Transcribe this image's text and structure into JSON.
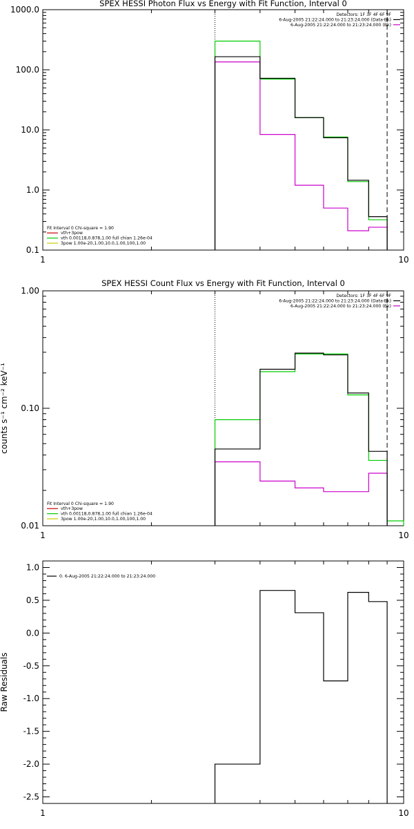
{
  "chart_data": [
    {
      "type": "line",
      "title": "SPEX HESSI Photon Flux vs Energy with Fit Function, Interval 0",
      "xscale": "log",
      "yscale": "log",
      "xlim": [
        1,
        10
      ],
      "ylim": [
        0.1,
        1000
      ],
      "xticks": [
        1,
        10
      ],
      "xticklabels": [
        "1",
        "10"
      ],
      "yticks": [
        0.1,
        1,
        10,
        100,
        1000
      ],
      "yticklabels": [
        "0.1",
        "1.0",
        "10.0",
        "100.0",
        "1000.0"
      ],
      "grid": false,
      "ref_lines": [
        {
          "x": 3,
          "style": "dotted",
          "color": "#000000"
        },
        {
          "x": 9,
          "style": "dashed",
          "color": "#000000"
        }
      ],
      "legend_top_right": {
        "lines": [
          {
            "text": "Detectors: 1F 3F 4F 6F 9F",
            "color": ""
          },
          {
            "text": "6-Aug-2005 21:22:24.000 to 21:23:24.000 (Data-Bk)",
            "color": "#000000"
          },
          {
            "text": "6-Aug-2005 21:22:24.000 to 21:23:24.000 (Bk)",
            "color": "#cc00cc"
          }
        ]
      },
      "legend_bottom_left": {
        "lines": [
          {
            "text": "Fit Interval 0   Chi-square = 1.90",
            "color": ""
          },
          {
            "text": "vth+3pow",
            "color": "#cc0000"
          },
          {
            "text": "vth 0.00118,0.878,1.00  full chian 1.26e-04",
            "color": "#00cc00"
          },
          {
            "text": "3pow 1.00e-20,1.00,10.0,1.00,100,1.00",
            "color": "#cccc00"
          }
        ]
      },
      "series": [
        {
          "role": "data_minus_bk",
          "color": "#000000",
          "edges": [
            3,
            4,
            5,
            6,
            7,
            8,
            9
          ],
          "values": [
            165,
            72,
            16,
            7.4,
            1.45,
            0.36
          ]
        },
        {
          "role": "bk",
          "color": "#cc00cc",
          "edges": [
            3,
            4,
            5,
            6,
            7,
            8,
            9
          ],
          "values": [
            135,
            8.4,
            1.2,
            0.5,
            0.21,
            0.24
          ]
        },
        {
          "role": "fit",
          "color": "#00cc00",
          "edges": [
            3,
            4,
            5,
            6,
            7,
            8,
            9
          ],
          "values": [
            300,
            70,
            16,
            7.6,
            1.38,
            0.32
          ]
        }
      ]
    },
    {
      "type": "line",
      "title": "SPEX HESSI Count Flux vs Energy with Fit Function, Interval 0",
      "ylabel": "counts s⁻¹ cm⁻² keV⁻¹",
      "xscale": "log",
      "yscale": "log",
      "xlim": [
        1,
        10
      ],
      "ylim": [
        0.01,
        1
      ],
      "xticks": [
        1,
        10
      ],
      "xticklabels": [
        "1",
        "10"
      ],
      "yticks": [
        0.01,
        0.1,
        1
      ],
      "yticklabels": [
        "0.01",
        "0.10",
        "1.00"
      ],
      "grid": false,
      "ref_lines": [
        {
          "x": 3,
          "style": "dotted",
          "color": "#000000"
        },
        {
          "x": 9,
          "style": "dashed",
          "color": "#000000"
        }
      ],
      "legend_top_right": {
        "lines": [
          {
            "text": "Detectors: 1F 3F 4F 6F 9F",
            "color": ""
          },
          {
            "text": "6-Aug-2005 21:22:24.000 to 21:23:24.000 (Data-Bk)",
            "color": "#000000"
          },
          {
            "text": "6-Aug-2005 21:22:24.000 to 21:23:24.000 (Bk)",
            "color": "#cc00cc"
          }
        ]
      },
      "legend_bottom_left": {
        "lines": [
          {
            "text": "Fit Interval 0   Chi-square = 1.90",
            "color": ""
          },
          {
            "text": "vth+3pow",
            "color": "#cc0000"
          },
          {
            "text": "vth 0.00118,0.878,1.00  full chian 1.26e-04",
            "color": "#00cc00"
          },
          {
            "text": "3pow 1.00e-20,1.00,10.0,1.00,100,1.00",
            "color": "#cccc00"
          }
        ]
      },
      "series": [
        {
          "role": "data_minus_bk",
          "color": "#000000",
          "edges": [
            3,
            4,
            5,
            6,
            7,
            8,
            9
          ],
          "values": [
            0.045,
            0.215,
            0.295,
            0.285,
            0.135,
            0.043
          ]
        },
        {
          "role": "bk",
          "color": "#cc00cc",
          "edges": [
            3,
            4,
            5,
            6,
            7,
            8,
            9
          ],
          "values": [
            0.035,
            0.024,
            0.021,
            0.0195,
            0.0195,
            0.028
          ]
        },
        {
          "role": "fit",
          "color": "#00cc00",
          "edges": [
            3,
            4,
            5,
            6,
            7,
            8,
            9,
            10
          ],
          "values": [
            0.08,
            0.205,
            0.29,
            0.29,
            0.13,
            0.036,
            0.011
          ]
        }
      ]
    },
    {
      "type": "line",
      "title": "",
      "ylabel": "Raw Residuals",
      "xscale": "log",
      "yscale": "linear",
      "xlim": [
        1,
        10
      ],
      "ylim": [
        -2.6,
        1.1
      ],
      "xticks": [
        1,
        10
      ],
      "xticklabels": [
        "1",
        "10"
      ],
      "yticks": [
        1.0,
        0.5,
        0.0,
        -0.5,
        -1.0,
        -1.5,
        -2.0,
        -2.5
      ],
      "yticklabels": [
        "1.0",
        "0.5",
        "0.0",
        "-0.5",
        "-1.0",
        "-1.5",
        "-2.0",
        "-2.5"
      ],
      "grid": false,
      "ref_lines": [],
      "legend_top_left": {
        "lines": [
          {
            "text": "0.  6-Aug-2005 21:22:24.000 to 21:23:24.000",
            "color": "#000000"
          }
        ]
      },
      "series": [
        {
          "role": "residuals",
          "color": "#000000",
          "edges": [
            3,
            4,
            5,
            6,
            7,
            8,
            9
          ],
          "values": [
            -2.0,
            0.65,
            0.31,
            -0.73,
            0.62,
            0.48
          ]
        }
      ]
    }
  ]
}
